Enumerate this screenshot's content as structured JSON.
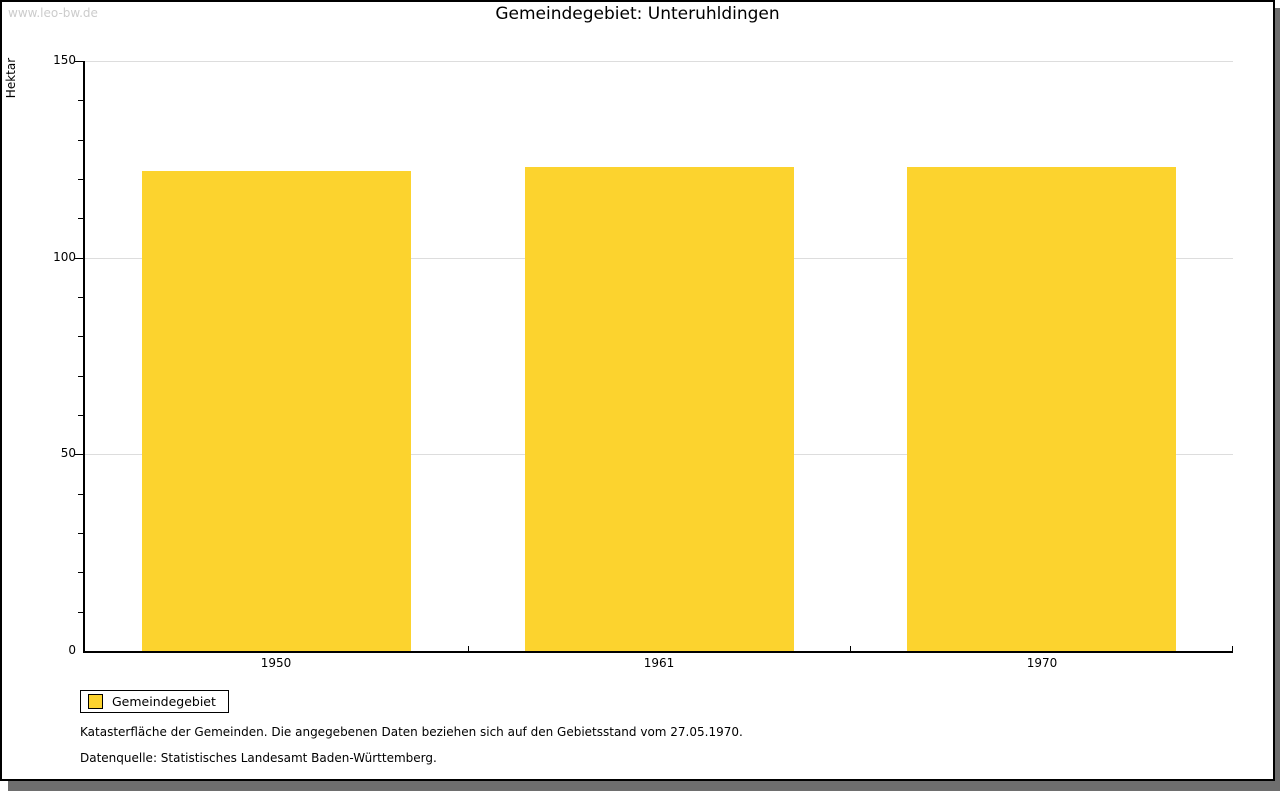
{
  "watermark": "www.leo-bw.de",
  "title": "Gemeindegebiet: Unteruhldingen",
  "chart_data": {
    "type": "bar",
    "title": "Gemeindegebiet: Unteruhldingen",
    "categories": [
      "1950",
      "1961",
      "1970"
    ],
    "series": [
      {
        "name": "Gemeindegebiet",
        "values": [
          122,
          123,
          123
        ]
      }
    ],
    "xlabel": "",
    "ylabel": "Hektar",
    "ylim": [
      0,
      150
    ],
    "yticks_major": [
      0,
      50,
      100,
      150
    ],
    "ytick_minor_step": 10,
    "grid": true,
    "gridline_values": [
      50,
      100,
      150
    ],
    "legend_entries": [
      "Gemeindegebiet"
    ],
    "legend_position": "below-left",
    "bar_color": "#FCD32E"
  },
  "legend": {
    "label": "Gemeindegebiet"
  },
  "footer": {
    "line1": "Katasterfläche der Gemeinden. Die angegebenen Daten beziehen sich auf den Gebietsstand vom 27.05.1970.",
    "line2": "Datenquelle: Statistisches Landesamt Baden-Württemberg."
  },
  "colors": {
    "bar": "#FCD32E",
    "grid": "#DDDDDD",
    "axis": "#000000",
    "watermark": "#CCCCCC",
    "shadow": "#6E6E6E"
  }
}
